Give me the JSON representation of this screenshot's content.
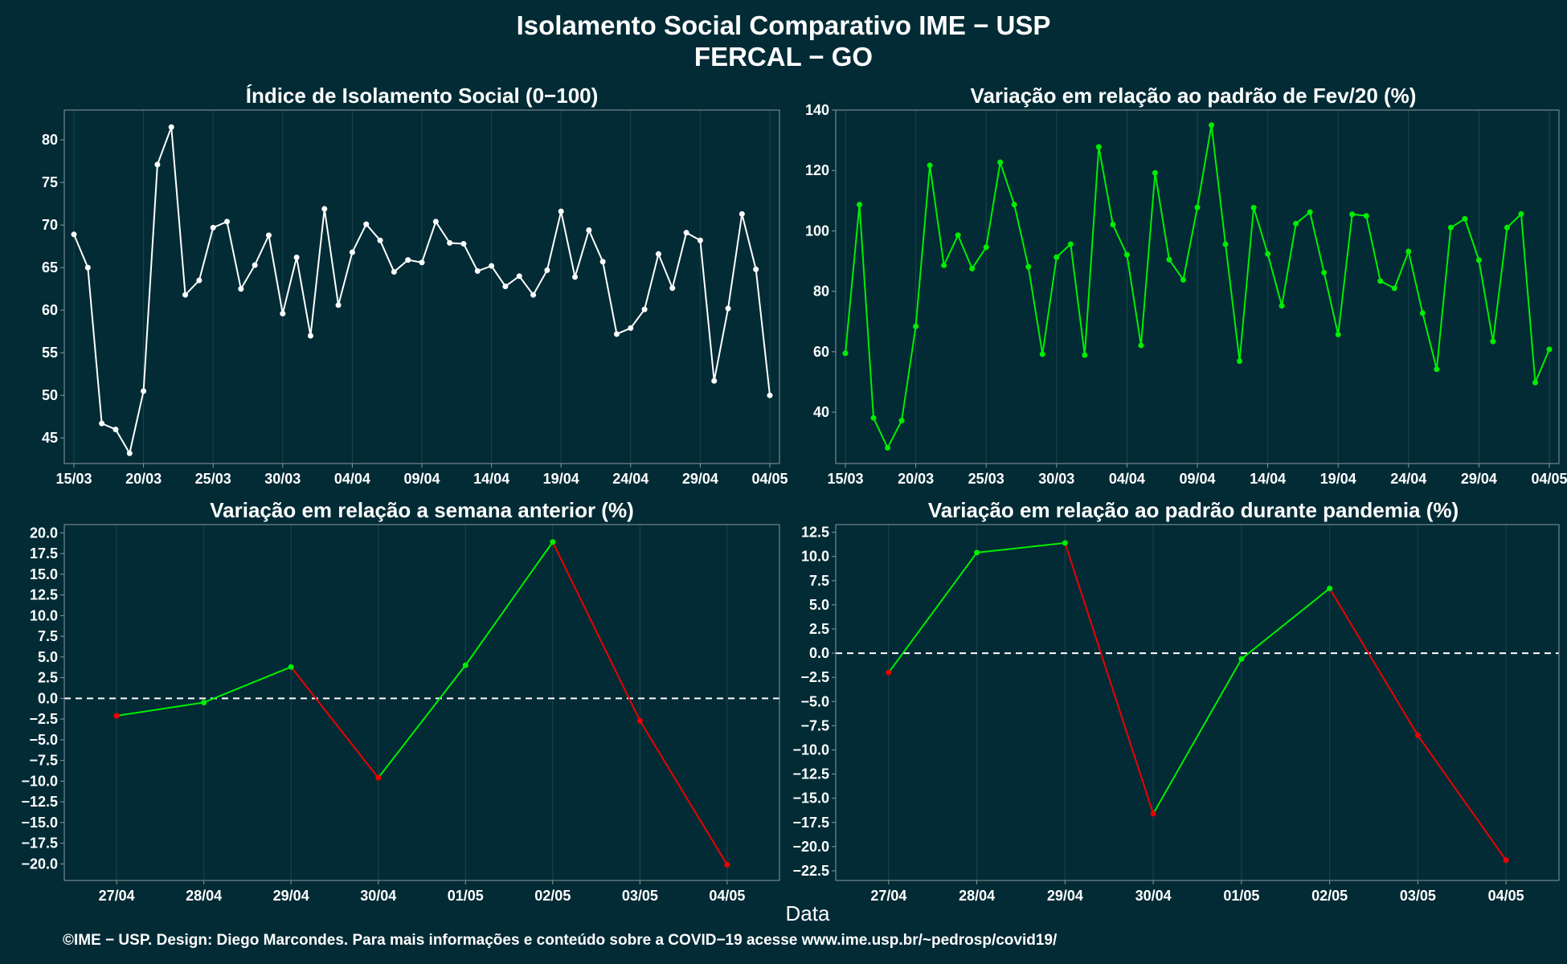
{
  "header": {
    "title_line1": "Isolamento Social Comparativo IME − USP",
    "title_line2": "FERCAL − GO"
  },
  "footer": {
    "xaxis_title": "Data",
    "credits": "©IME − USP. Design: Diego Marcondes. Para mais informações e conteúdo sobre a COVID−19 acesse www.ime.usp.br/~pedrosp/covid19/"
  },
  "colors": {
    "background": "#022b35",
    "white_series": "#ffffff",
    "green_series": "#00ee00",
    "red_series": "#ee0000",
    "grid": "#1d444c"
  },
  "chart_data": [
    {
      "id": "indice",
      "type": "line",
      "title": "Índice de Isolamento Social (0−100)",
      "color": "#ffffff",
      "dates_start": "15/03",
      "x_tick_labels": [
        "15/03",
        "20/03",
        "25/03",
        "30/03",
        "04/04",
        "09/04",
        "14/04",
        "19/04",
        "24/04",
        "29/04",
        "04/05"
      ],
      "y_ticks": [
        45,
        50,
        55,
        60,
        65,
        70,
        75,
        80
      ],
      "ylim": [
        42,
        83.5
      ],
      "values": [
        68.9,
        65.0,
        46.7,
        46.0,
        43.2,
        50.5,
        77.1,
        81.5,
        61.8,
        63.5,
        69.7,
        70.4,
        62.5,
        65.3,
        68.8,
        59.6,
        66.2,
        57.0,
        71.9,
        60.6,
        66.8,
        70.1,
        68.2,
        64.5,
        65.9,
        65.6,
        70.4,
        67.9,
        67.8,
        64.6,
        65.2,
        62.8,
        64.0,
        61.8,
        64.7,
        71.6,
        63.9,
        69.4,
        65.7,
        57.2,
        57.9,
        60.1,
        66.6,
        62.6,
        69.1,
        68.2,
        51.7,
        60.2,
        71.3,
        64.8,
        50.0
      ]
    },
    {
      "id": "fev20",
      "type": "line",
      "title": "Variação em relação ao padrão de Fev/20 (%)",
      "color": "#00ee00",
      "x_tick_labels": [
        "15/03",
        "20/03",
        "25/03",
        "30/03",
        "04/04",
        "09/04",
        "14/04",
        "19/04",
        "24/04",
        "29/04",
        "04/05"
      ],
      "y_ticks": [
        40,
        60,
        80,
        100,
        120,
        140
      ],
      "ylim": [
        23,
        140
      ],
      "values": [
        59.5,
        108.7,
        38.1,
        28.2,
        37.2,
        68.4,
        121.7,
        88.6,
        98.6,
        87.5,
        94.6,
        122.7,
        108.7,
        88.1,
        59.2,
        91.3,
        95.6,
        58.9,
        127.8,
        102.1,
        92.1,
        62.1,
        119.2,
        90.5,
        83.8,
        107.8,
        135.0,
        95.6,
        56.9,
        107.7,
        92.4,
        75.2,
        102.4,
        106.2,
        86.2,
        65.7,
        105.5,
        105.0,
        83.4,
        81.0,
        93.2,
        72.8,
        54.2,
        101.1,
        104.0,
        90.3,
        63.4,
        101.1,
        105.6,
        49.8,
        60.8
      ]
    },
    {
      "id": "semana",
      "type": "line",
      "title": "Variação em relação a semana anterior (%)",
      "categories": [
        "27/04",
        "28/04",
        "29/04",
        "30/04",
        "01/05",
        "02/05",
        "03/05",
        "04/05"
      ],
      "values": [
        -2.1,
        -0.5,
        3.8,
        -9.6,
        4.0,
        18.9,
        -2.7,
        -20.1
      ],
      "y_ticks": [
        -20,
        -17.5,
        -15,
        -12.5,
        -10,
        -7.5,
        -5,
        -2.5,
        0,
        2.5,
        5,
        7.5,
        10,
        12.5,
        15,
        17.5,
        20
      ],
      "ylim": [
        -22,
        21
      ],
      "up_color": "#00ee00",
      "down_color": "#ee0000"
    },
    {
      "id": "pandemia",
      "type": "line",
      "title": "Variação em relação ao padrão durante pandemia (%)",
      "categories": [
        "27/04",
        "28/04",
        "29/04",
        "30/04",
        "01/05",
        "02/05",
        "03/05",
        "04/05"
      ],
      "values": [
        -2.0,
        10.4,
        11.4,
        -16.6,
        -0.6,
        6.7,
        -8.5,
        -21.4
      ],
      "y_ticks": [
        -22.5,
        -20,
        -17.5,
        -15,
        -12.5,
        -10,
        -7.5,
        -5,
        -2.5,
        0,
        2.5,
        5,
        7.5,
        10,
        12.5
      ],
      "ylim": [
        -23.5,
        13.3
      ],
      "up_color": "#00ee00",
      "down_color": "#ee0000"
    }
  ]
}
